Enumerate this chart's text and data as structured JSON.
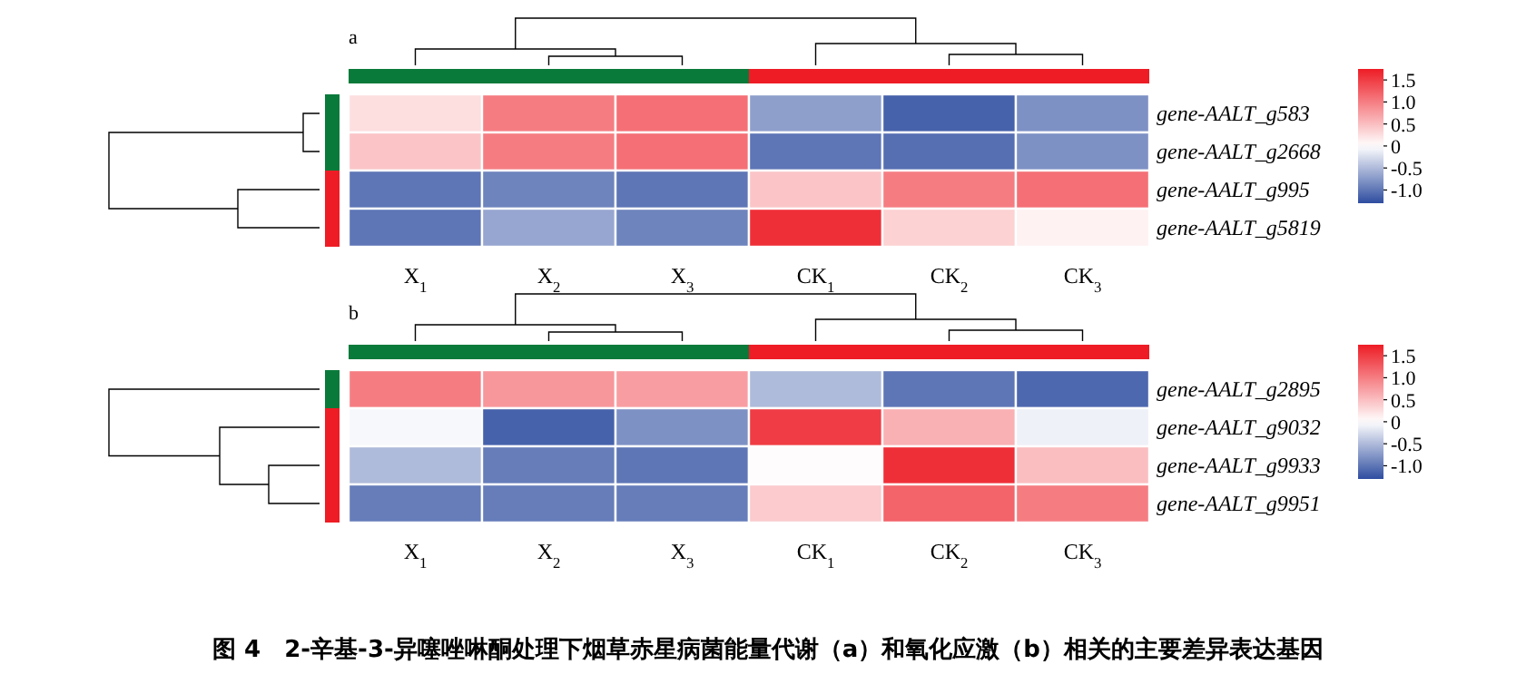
{
  "chart_data": [
    {
      "type": "heatmap",
      "title": "a",
      "categories": [
        "X$_{1}$",
        "X$_{2}$",
        "X$_{3}$",
        "CK$_{1}$",
        "CK$_{2}$",
        "CK$_{3}$"
      ],
      "y_categories": [
        "gene-AALT_g583",
        "gene-AALT_g2668",
        "gene-AALT_g995",
        "gene-AALT_g5819"
      ],
      "cells": [
        [
          0.25,
          1.0,
          1.1,
          -0.7,
          -1.15,
          -0.8
        ],
        [
          0.45,
          1.0,
          1.1,
          -1.0,
          -1.05,
          -0.8
        ],
        [
          -1.0,
          -0.9,
          -1.0,
          0.45,
          1.0,
          1.1
        ],
        [
          -1.0,
          -0.65,
          -0.9,
          1.6,
          0.35,
          0.1
        ]
      ],
      "clim": [
        -1.3,
        1.75
      ],
      "cticks": [
        {
          "value": 1.5,
          "label": "1.5"
        },
        {
          "value": 1.0,
          "label": "1.0"
        },
        {
          "value": 0.5,
          "label": "0.5"
        },
        {
          "value": 0,
          "label": "0"
        },
        {
          "value": -0.5,
          "label": "-0.5"
        },
        {
          "value": -1.0,
          "label": "-1.0"
        }
      ]
    },
    {
      "type": "heatmap",
      "title": "b",
      "categories": [
        "X$_{1}$",
        "X$_{2}$",
        "X$_{3}$",
        "CK$_{1}$",
        "CK$_{2}$",
        "CK$_{3}$"
      ],
      "y_categories": [
        "gene-AALT_g2895",
        "gene-AALT_g9032",
        "gene-AALT_g9933",
        "gene-AALT_g9951"
      ],
      "cells": [
        [
          1.0,
          0.8,
          0.75,
          -0.5,
          -1.0,
          -1.1
        ],
        [
          -0.05,
          -1.15,
          -0.8,
          1.5,
          0.6,
          -0.1
        ],
        [
          -0.5,
          -0.95,
          -1.0,
          0.02,
          1.6,
          0.5
        ],
        [
          -0.95,
          -0.95,
          -0.95,
          0.4,
          1.2,
          1.0
        ]
      ],
      "clim": [
        -1.3,
        1.75
      ],
      "cticks": [
        {
          "value": 1.5,
          "label": "1.5"
        },
        {
          "value": 1.0,
          "label": "1.0"
        },
        {
          "value": 0.5,
          "label": "0.5"
        },
        {
          "value": 0,
          "label": "0"
        },
        {
          "value": -0.5,
          "label": "-0.5"
        },
        {
          "value": -1.0,
          "label": "-1.0"
        }
      ],
      "annotations": [
        "图 4　2-辛基-3-异噻唑啉酮处理下烟草赤星病菌能量代谢（a）和氧化应激（b）相关的主要差异表达基因"
      ]
    }
  ]
}
